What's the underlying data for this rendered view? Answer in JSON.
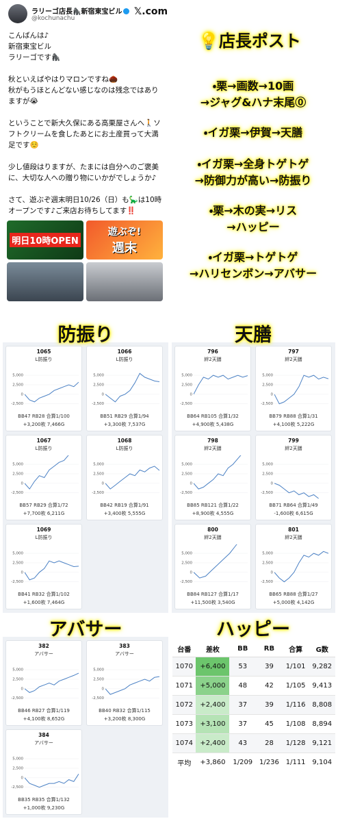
{
  "tweet": {
    "name": "ラリーゴ店長🦍新宿東宝ビル",
    "handle": "@kochunachu",
    "site": "𝕏.com",
    "paragraphs": [
      [
        "こんばんは♪",
        "新宿東宝ビル",
        "ラリーゴです🦍"
      ],
      [
        "秋といえばやはりマロンですね🌰",
        "秋がもうほとんどない感じなのは残念ではありますが😭"
      ],
      [
        "ということで新大久保にある高栗屋さんへ🚶ソフトクリームを食したあとにお土産買って大満足です☺️"
      ],
      [
        "少し値段はりますが、たまには自分へのご褒美に、大切な人への贈り物にいかがでしょうか♪"
      ],
      [
        "さて、遊ぶぞ週末明日10/26（日）も🦕は10時オープンです♪ご来店お待ちしてます‼️"
      ]
    ],
    "photos": [
      "明日10時OPEN",
      "遊ぶぞ!",
      "週末"
    ]
  },
  "post": {
    "title": "💡店長ポスト",
    "lines": [
      "・栗→画数→10画",
      "→ジャグ&ハナ末尾⓪",
      "・イガ栗→伊賀→天膳",
      "・イガ栗→全身トゲトゲ",
      "→防御力が高い→防振り",
      "・栗→木の実→リス",
      "→ハッピー",
      "・イガ栗→トゲトゲ",
      "→ハリセンボン→アバサー"
    ]
  },
  "chart_axis": {
    "ylim": [
      -4000,
      7000
    ],
    "yticks": [
      {
        "value": 5000,
        "label": "5,000"
      },
      {
        "value": 2500,
        "label": "2,500"
      },
      0,
      {
        "value": -2500,
        "label": "-2,500"
      }
    ]
  },
  "panels": [
    {
      "heading": "防振り",
      "cards": [
        {
          "id": "1065",
          "subtitle": "L防振り",
          "stats": "BB47 RB28 合算1/100",
          "result": "+3,200枚 7,466G",
          "values": [
            0,
            -1500,
            -2000,
            -1000,
            -500,
            0,
            1000,
            1500,
            2000,
            2500,
            2000,
            3200
          ]
        },
        {
          "id": "1066",
          "subtitle": "L防振り",
          "stats": "BB51 RB29 合算1/94",
          "result": "+3,300枚 7,537G",
          "values": [
            0,
            -1000,
            -2000,
            -500,
            0,
            1000,
            3000,
            5500,
            4500,
            4000,
            3500,
            3300
          ]
        },
        {
          "id": "1067",
          "subtitle": "L防振り",
          "stats": "BB57 RB29 合算1/72",
          "result": "+7,700枚 6,211G",
          "values": [
            0,
            -1500,
            500,
            2000,
            1500,
            3500,
            4500,
            5500,
            6000,
            7500,
            null,
            7700
          ]
        },
        {
          "id": "1068",
          "subtitle": "L防振り",
          "stats": "BB42 RB19 合算1/91",
          "result": "+3,400枚 5,555G",
          "values": [
            0,
            -1500,
            -500,
            500,
            1500,
            2500,
            2000,
            3500,
            3000,
            4000,
            4500,
            3400
          ]
        },
        {
          "id": "1069",
          "subtitle": "L防振り",
          "stats": "BB41 RB32 合算1/102",
          "result": "+1,600枚 7,464G",
          "values": [
            0,
            -2000,
            -1500,
            0,
            1000,
            3000,
            2500,
            3000,
            2500,
            2000,
            1500,
            1600
          ]
        }
      ]
    },
    {
      "heading": "天膳",
      "cards": [
        {
          "id": "796",
          "subtitle": "絆2天膳",
          "stats": "BB64 RB105 合算1/32",
          "result": "+4,900枚 5,438G",
          "values": [
            0,
            2500,
            4500,
            4000,
            5000,
            4500,
            5000,
            4000,
            4500,
            5000,
            4500,
            4900
          ]
        },
        {
          "id": "797",
          "subtitle": "絆2天膳",
          "stats": "BB79 RB88 合算1/31",
          "result": "+4,100枚 5,222G",
          "values": [
            0,
            -2500,
            -2000,
            -1000,
            0,
            2000,
            5000,
            4500,
            5000,
            4000,
            4500,
            4100
          ]
        },
        {
          "id": "798",
          "subtitle": "絆2天膳",
          "stats": "BB85 RB121 合算1/22",
          "result": "+8,900枚 4,555G",
          "values": [
            0,
            -1500,
            -1000,
            0,
            1000,
            2500,
            2000,
            4000,
            5000,
            6500,
            8000,
            8900
          ]
        },
        {
          "id": "799",
          "subtitle": "絆2天膳",
          "stats": "BB71 RB64 合算1/49",
          "result": "-1,600枚 6,615G",
          "values": [
            0,
            -500,
            -1500,
            -2500,
            -2000,
            -3000,
            -2500,
            -3500,
            -3000,
            -4000,
            null,
            -1600
          ]
        },
        {
          "id": "800",
          "subtitle": "絆2天膳",
          "stats": "BB84 RB127 合算1/17",
          "result": "+11,500枚 3,540G",
          "values": [
            0,
            -1500,
            -1000,
            500,
            2000,
            3500,
            5000,
            7000,
            9000,
            11500
          ]
        },
        {
          "id": "801",
          "subtitle": "絆2天膳",
          "stats": "BB65 RB88 合算1/27",
          "result": "+5,000枚 4,142G",
          "values": [
            0,
            -1500,
            -2500,
            -1500,
            0,
            2500,
            4500,
            4000,
            5000,
            4500,
            5500,
            5000
          ]
        }
      ]
    },
    {
      "heading": "アバサー",
      "cards": [
        {
          "id": "382",
          "subtitle": "アバサー",
          "stats": "BB46 RB27 合算1/119",
          "result": "+4,100枚 8,652G",
          "values": [
            0,
            -1000,
            -500,
            500,
            1000,
            1500,
            1000,
            2000,
            2500,
            3000,
            3500,
            4100
          ]
        },
        {
          "id": "383",
          "subtitle": "アバサー",
          "stats": "BB40 RB32 合算1/115",
          "result": "+3,200枚 8,300G",
          "values": [
            0,
            -1500,
            -1000,
            -500,
            0,
            1000,
            1500,
            2000,
            2500,
            2000,
            3000,
            3200
          ]
        },
        {
          "id": "384",
          "subtitle": "アバサー",
          "stats": "BB35 RB35 合算1/132",
          "result": "+1,000枚 9,230G",
          "values": [
            0,
            -1500,
            -2000,
            -2500,
            -2000,
            -1500,
            -1500,
            -1000,
            -1500,
            -500,
            -1000,
            1000
          ]
        }
      ]
    }
  ],
  "table": {
    "heading": "ハッピー",
    "header": [
      "台番",
      "差枚",
      "BB",
      "RB",
      "合算",
      "G数"
    ],
    "rows": [
      [
        "1070",
        "+6,400",
        "53",
        "39",
        "1/101",
        "9,282"
      ],
      [
        "1071",
        "+5,000",
        "48",
        "42",
        "1/105",
        "9,413"
      ],
      [
        "1072",
        "+2,400",
        "37",
        "39",
        "1/116",
        "8,808"
      ],
      [
        "1073",
        "+3,100",
        "37",
        "45",
        "1/108",
        "8,894"
      ],
      [
        "1074",
        "+2,400",
        "43",
        "28",
        "1/128",
        "9,121"
      ],
      [
        "平均",
        "+3,860",
        "1/209",
        "1/236",
        "1/111",
        "9,104"
      ]
    ]
  }
}
